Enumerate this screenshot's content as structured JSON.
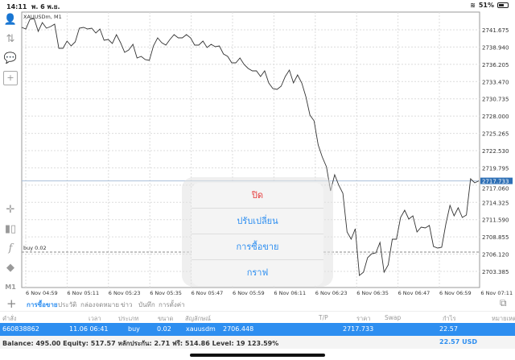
{
  "status_bar": {
    "time": "14:11",
    "date": "พ. 6 พ.ย.",
    "battery": "51%"
  },
  "chart": {
    "symbol_label": "XAUUSDm, M1",
    "order_line_label": "buy 0.02",
    "current_price": "2717.733",
    "price_labels": [
      "2741.675",
      "2738.940",
      "2736.205",
      "2733.470",
      "2730.735",
      "2728.000",
      "2725.265",
      "2722.530",
      "2719.795",
      "2717.060",
      "2714.325",
      "2711.590",
      "2708.855",
      "2706.120",
      "2703.385"
    ],
    "time_labels": [
      "6 Nov 04:59",
      "6 Nov 05:11",
      "6 Nov 05:23",
      "6 Nov 05:35",
      "6 Nov 05:47",
      "6 Nov 05:59",
      "6 Nov 06:11",
      "6 Nov 06:23",
      "6 Nov 06:35",
      "6 Nov 06:47",
      "6 Nov 06:59",
      "6 Nov 07:11"
    ],
    "colors": {
      "line": "#333333",
      "grid": "#dcdcdc",
      "bid_line": "#a9bfd9",
      "price_box": "#2d6fb5"
    }
  },
  "chart_data": {
    "type": "line",
    "ylim": [
      2701.2,
      2744.3
    ],
    "order_price": 2706.448,
    "values": [
      2742.06,
      2741.8,
      2743.33,
      2743.46,
      2741.42,
      2742.82,
      2741.93,
      2742.19,
      2742.57,
      2738.74,
      2738.74,
      2739.89,
      2739.12,
      2739.76,
      2741.93,
      2742.06,
      2741.8,
      2741.93,
      2741.16,
      2741.8,
      2740.02,
      2740.14,
      2739.5,
      2740.91,
      2739.63,
      2738.1,
      2738.48,
      2739.38,
      2737.21,
      2737.46,
      2736.95,
      2736.83,
      2739.12,
      2740.4,
      2739.63,
      2739.25,
      2740.14,
      2740.91,
      2740.4,
      2740.4,
      2740.91,
      2740.4,
      2739.25,
      2739.25,
      2739.89,
      2738.87,
      2739.38,
      2738.99,
      2739.12,
      2737.85,
      2737.46,
      2736.44,
      2736.44,
      2737.21,
      2736.19,
      2735.55,
      2735.17,
      2735.17,
      2734.27,
      2735.17,
      2733.25,
      2732.36,
      2732.23,
      2732.74,
      2734.27,
      2735.29,
      2733.25,
      2734.53,
      2733.25,
      2731.08,
      2728.15,
      2727.25,
      2723.43,
      2721.51,
      2719.97,
      2716.15,
      2718.7,
      2717.04,
      2715.77,
      2709.64,
      2708.49,
      2710.15,
      2702.75,
      2703.26,
      2705.56,
      2706.19,
      2706.32,
      2707.98,
      2703.26,
      2704.41,
      2708.49,
      2708.49,
      2711.94,
      2713.09,
      2711.68,
      2712.19,
      2709.64,
      2710.4,
      2710.28,
      2710.66,
      2707.34,
      2707.09,
      2707.21,
      2710.92,
      2713.85,
      2712.19,
      2713.47,
      2711.94,
      2712.32,
      2718.06,
      2717.43,
      2717.733
    ]
  },
  "sidebar": {
    "timeframe": "M1"
  },
  "tabs": [
    "การซื้อขาย",
    "ประวัติ",
    "กล่องจดหมาย",
    "ข่าว",
    "บันทึก",
    "การตั้งค่า"
  ],
  "table": {
    "headers": [
      "คำสั่ง",
      "เวลา",
      "ประเภท",
      "ขนาด",
      "สัญลักษณ์",
      "T/P",
      "ราคา",
      "Swap",
      "กำไร",
      "หมายเหตุ"
    ],
    "row": {
      "order": "660838862",
      "time": "11.06 06:41",
      "type": "buy",
      "volume": "0.02",
      "symbol": "xauusdm",
      "open_price": "2706.448",
      "price": "2717.733",
      "profit": "22.57"
    }
  },
  "balance": {
    "text": "Balance: 495.00 Equity: 517.57 หลักประกัน: 2.71 ฟรี: 514.86 Level: 19 123.59%",
    "total": "22.57 USD"
  },
  "popup": {
    "items": [
      "ปิด",
      "ปรับเปลี่ยน",
      "การซื้อขาย",
      "กราฟ"
    ]
  }
}
